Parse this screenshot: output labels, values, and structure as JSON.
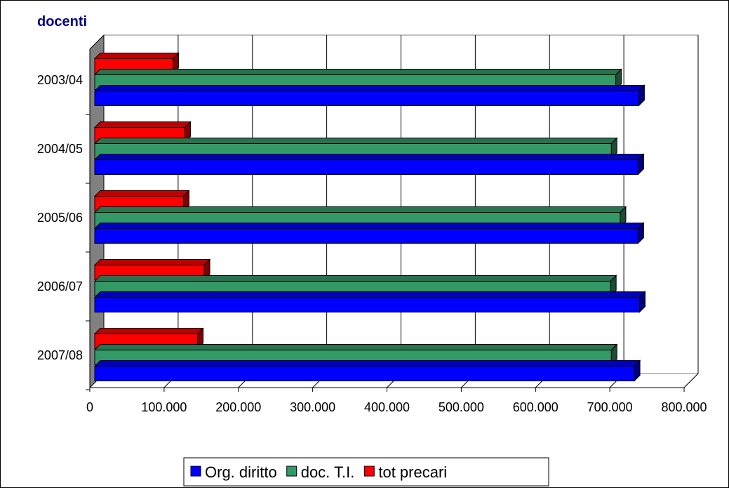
{
  "chart_data": {
    "type": "bar",
    "orientation": "horizontal",
    "style": "3d",
    "title": "docenti",
    "categories": [
      "2003/04",
      "2004/05",
      "2005/06",
      "2006/07",
      "2007/08"
    ],
    "series": [
      {
        "name": "Org. diritto",
        "color": "#0000ff",
        "values": [
          739000,
          738000,
          738000,
          740000,
          733000
        ]
      },
      {
        "name": "doc. T.I.",
        "color": "#339966",
        "values": [
          708000,
          702000,
          714000,
          701000,
          702000
        ]
      },
      {
        "name": "tot precari",
        "color": "#ff0000",
        "values": [
          112000,
          128000,
          126000,
          154000,
          145000
        ]
      }
    ],
    "xlim": [
      0,
      800000
    ],
    "x_ticks": [
      "0",
      "100.000",
      "200.000",
      "300.000",
      "400.000",
      "500.000",
      "600.000",
      "700.000",
      "800.000"
    ],
    "grid": true,
    "legend_position": "bottom"
  }
}
